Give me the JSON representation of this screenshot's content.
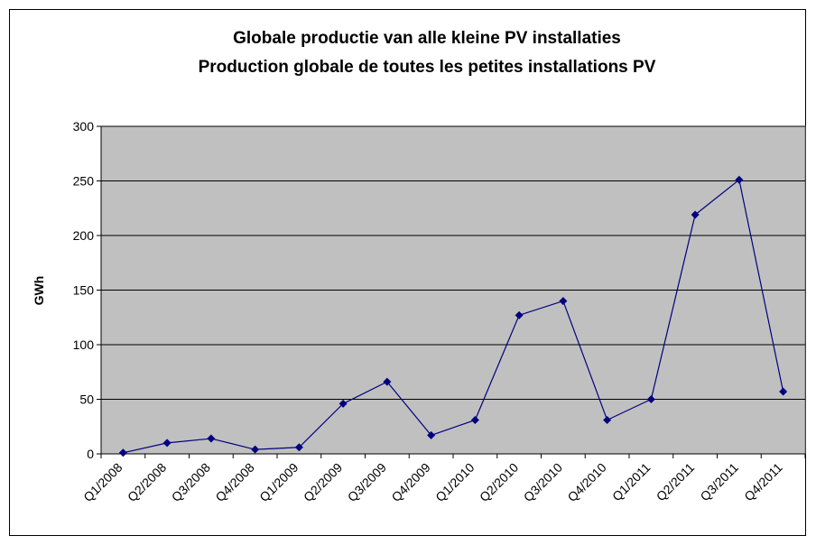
{
  "chart_data": {
    "type": "line",
    "title": [
      "Globale productie van alle kleine PV installaties",
      "Production globale de toutes les petites installations PV"
    ],
    "y_label": "GWh",
    "categories": [
      "Q1/2008",
      "Q2/2008",
      "Q3/2008",
      "Q4/2008",
      "Q1/2009",
      "Q2/2009",
      "Q3/2009",
      "Q4/2009",
      "Q1/2010",
      "Q2/2010",
      "Q3/2010",
      "Q4/2010",
      "Q1/2011",
      "Q2/2011",
      "Q3/2011",
      "Q4/2011"
    ],
    "values": [
      1,
      10,
      14,
      4,
      6,
      46,
      66,
      17,
      31,
      127,
      140,
      31,
      50,
      219,
      251,
      57
    ],
    "color": "#000080",
    "ylim": [
      0,
      300
    ],
    "yticks": [
      0,
      50,
      100,
      150,
      200,
      250,
      300
    ],
    "grid": true
  }
}
